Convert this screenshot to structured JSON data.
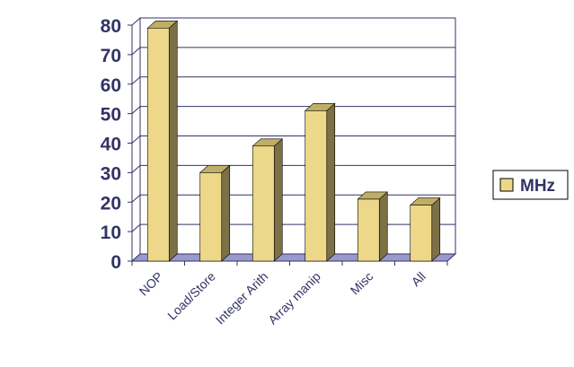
{
  "chart_data": {
    "type": "bar",
    "categories": [
      "NOP",
      "Load/Store",
      "Integer Arith",
      "Array manip",
      "Misc",
      "All"
    ],
    "series": [
      {
        "name": "MHz",
        "values": [
          79,
          30,
          39,
          51,
          21,
          19
        ]
      }
    ],
    "ylim": [
      0,
      80
    ],
    "yticks": [
      0,
      10,
      20,
      30,
      40,
      50,
      60,
      70,
      80
    ],
    "grid": true,
    "legend_position": "right",
    "style": "3d",
    "colors": {
      "bar_front": "#EDD88A",
      "bar_side": "#7C7046",
      "bar_top": "#C0AE66",
      "axis_text": "#333366",
      "gridline": "#333366",
      "floor": "#9999CC"
    }
  }
}
